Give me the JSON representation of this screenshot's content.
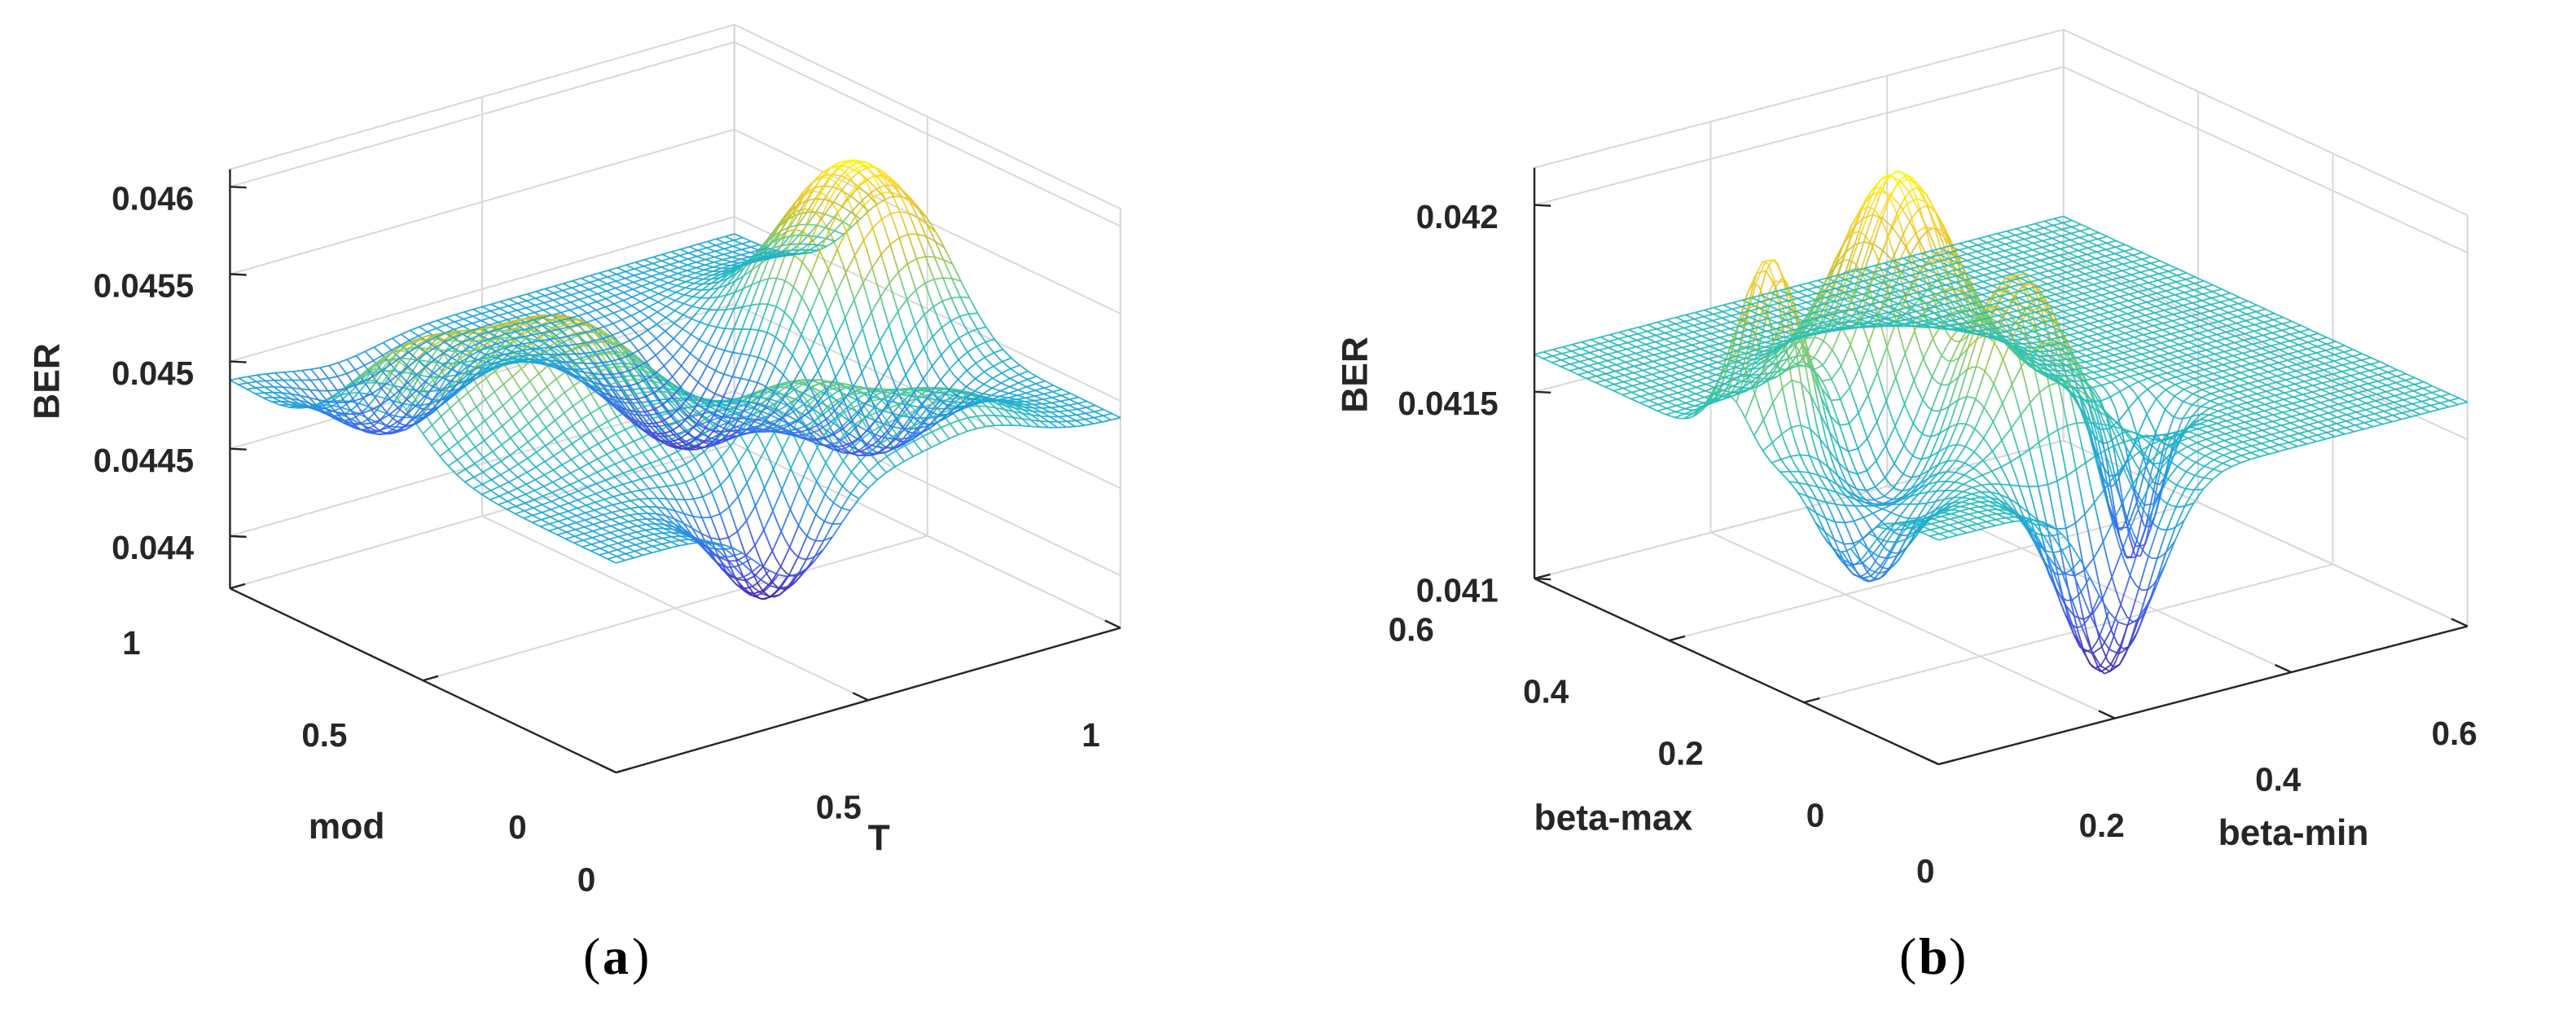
{
  "figure": {
    "colors": {
      "colormap": [
        "#3e26a8",
        "#4352e6",
        "#2d7fed",
        "#1fa9d6",
        "#2bc0b5",
        "#71cc7d",
        "#c7c12e",
        "#fbcd33",
        "#f9fb0e"
      ],
      "axis": "#262626",
      "grid": "#d9d9d9"
    }
  },
  "chart_data": [
    {
      "type": "surface",
      "panel_caption": "a",
      "title": "",
      "xlabel": "T",
      "ylabel": "mod",
      "zlabel": "BER",
      "xlim": [
        0,
        1
      ],
      "ylim": [
        0,
        1
      ],
      "zlim": [
        0.0437,
        0.0461
      ],
      "x_ticks": [
        "0",
        "0.5",
        "1"
      ],
      "y_ticks": [
        "0",
        "0.5",
        "1"
      ],
      "z_ticks": [
        "0.044",
        "0.0445",
        "0.045",
        "0.0455",
        "0.046"
      ],
      "z_tick_values": [
        0.044,
        0.0445,
        0.045,
        0.0455,
        0.046
      ],
      "grid": true,
      "colormap": "parula",
      "surface_model": {
        "base": 0.0449,
        "bumps": [
          {
            "x": 0.88,
            "y": 0.55,
            "amplitude": 0.00105,
            "spread": 0.13
          },
          {
            "x": 0.3,
            "y": 0.52,
            "amplitude": 0.0006,
            "spread": 0.13
          },
          {
            "x": 0.07,
            "y": 0.62,
            "amplitude": 0.00045,
            "spread": 0.1
          },
          {
            "x": 0.5,
            "y": 0.18,
            "amplitude": 0.00042,
            "spread": 0.1
          },
          {
            "x": 0.72,
            "y": 0.1,
            "amplitude": 0.00028,
            "spread": 0.1
          },
          {
            "x": 0.62,
            "y": 0.6,
            "amplitude": -0.0006,
            "spread": 0.12
          },
          {
            "x": 0.36,
            "y": 0.08,
            "amplitude": -0.00065,
            "spread": 0.08
          },
          {
            "x": 0.78,
            "y": 0.36,
            "amplitude": -0.00055,
            "spread": 0.1
          },
          {
            "x": 0.2,
            "y": 0.85,
            "amplitude": -0.00035,
            "spread": 0.09
          }
        ]
      }
    },
    {
      "type": "surface",
      "panel_caption": "b",
      "title": "",
      "xlabel": "beta-min",
      "ylabel": "beta-max",
      "zlabel": "BER",
      "xlim": [
        0,
        0.6
      ],
      "ylim": [
        0,
        0.6
      ],
      "zlim": [
        0.041,
        0.0421
      ],
      "x_ticks": [
        "0",
        "0.2",
        "0.4",
        "0.6"
      ],
      "x_tick_values": [
        0,
        0.2,
        0.4,
        0.6
      ],
      "y_ticks": [
        "0",
        "0.2",
        "0.4",
        "0.6"
      ],
      "y_tick_values": [
        0,
        0.2,
        0.4,
        0.6
      ],
      "z_ticks": [
        "0.041",
        "0.0415",
        "0.042"
      ],
      "z_tick_values": [
        0.041,
        0.0415,
        0.042
      ],
      "grid": true,
      "colormap": "parula",
      "surface_model": {
        "base": 0.0416,
        "bumps": [
          {
            "x": 0.35,
            "y": 0.56,
            "amplitude": 0.00058,
            "spread": 0.09
          },
          {
            "x": 0.08,
            "y": 0.52,
            "amplitude": 0.00048,
            "spread": 0.05
          },
          {
            "x": 0.38,
            "y": 0.3,
            "amplitude": 0.00042,
            "spread": 0.07
          },
          {
            "x": 0.36,
            "y": 0.06,
            "amplitude": -0.00052,
            "spread": 0.07
          },
          {
            "x": 0.58,
            "y": 0.28,
            "amplitude": -0.00042,
            "spread": 0.04
          },
          {
            "x": 0.06,
            "y": 0.25,
            "amplitude": -0.00025,
            "spread": 0.06
          },
          {
            "x": 0.2,
            "y": 0.4,
            "amplitude": -0.00018,
            "spread": 0.08
          }
        ]
      }
    }
  ]
}
